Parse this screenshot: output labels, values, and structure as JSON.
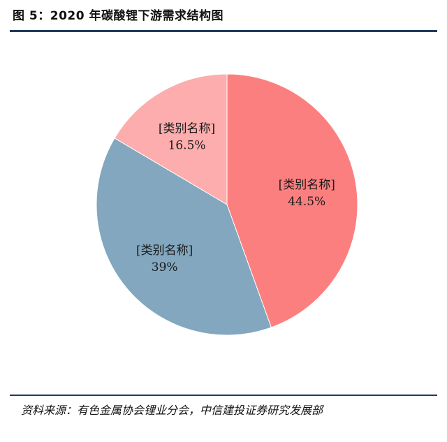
{
  "figure": {
    "title": "图 5：2020 年碳酸锂下游需求结构图",
    "source": "资料来源：有色金属协会锂业分会，中信建投证券研究发展部"
  },
  "chart_data": {
    "type": "pie",
    "title": "",
    "legend": "none",
    "slices": [
      {
        "name": "[类别名称]",
        "value": 44.5,
        "label": "44.5%",
        "color": "#fc7f7f"
      },
      {
        "name": "[类别名称]",
        "value": 39,
        "label": "39%",
        "color": "#82a7bf"
      },
      {
        "name": "[类别名称]",
        "value": 16.5,
        "label": "16.5%",
        "color": "#fdadad"
      }
    ]
  }
}
